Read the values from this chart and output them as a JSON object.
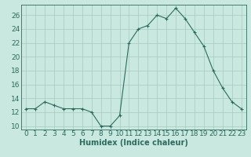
{
  "x": [
    0,
    1,
    2,
    3,
    4,
    5,
    6,
    7,
    8,
    9,
    10,
    11,
    12,
    13,
    14,
    15,
    16,
    17,
    18,
    19,
    20,
    21,
    22,
    23
  ],
  "y": [
    12.5,
    12.5,
    13.5,
    13,
    12.5,
    12.5,
    12.5,
    12,
    10,
    10,
    11.5,
    22,
    24,
    24.5,
    26,
    25.5,
    27,
    25.5,
    23.5,
    21.5,
    18,
    15.5,
    13.5,
    12.5
  ],
  "line_color": "#2E6B5E",
  "marker": "+",
  "marker_size": 4,
  "bg_color": "#C8E8E0",
  "grid_color": "#A8C8C0",
  "xlabel": "Humidex (Indice chaleur)",
  "xlim": [
    -0.5,
    23.5
  ],
  "ylim": [
    9.5,
    27.5
  ],
  "yticks": [
    10,
    12,
    14,
    16,
    18,
    20,
    22,
    24,
    26
  ],
  "xticks": [
    0,
    1,
    2,
    3,
    4,
    5,
    6,
    7,
    8,
    9,
    10,
    11,
    12,
    13,
    14,
    15,
    16,
    17,
    18,
    19,
    20,
    21,
    22,
    23
  ],
  "xlabel_fontsize": 7,
  "tick_fontsize": 6.5
}
